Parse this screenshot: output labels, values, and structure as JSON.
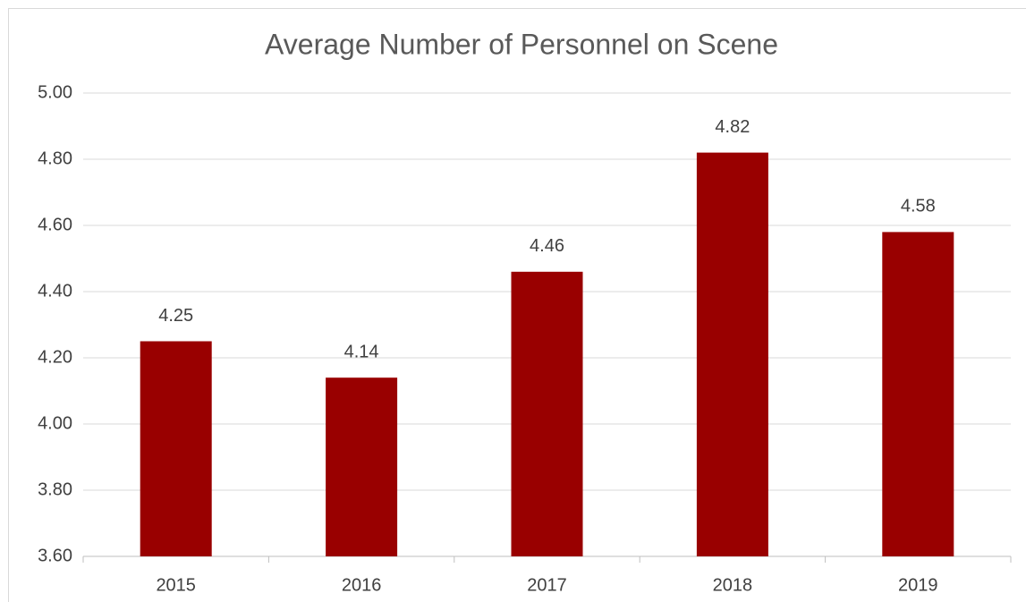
{
  "chart_data": {
    "type": "bar",
    "title": "Average Number of Personnel on Scene",
    "categories": [
      "2015",
      "2016",
      "2017",
      "2018",
      "2019"
    ],
    "values": [
      4.25,
      4.14,
      4.46,
      4.82,
      4.58
    ],
    "color": "#990000",
    "ylim": [
      3.6,
      5.0
    ],
    "yticks": [
      {
        "value": 3.6,
        "label": "3.60"
      },
      {
        "value": 3.8,
        "label": "3.80"
      },
      {
        "value": 4.0,
        "label": "4.00"
      },
      {
        "value": 4.2,
        "label": "4.20"
      },
      {
        "value": 4.4,
        "label": "4.40"
      },
      {
        "value": 4.6,
        "label": "4.60"
      },
      {
        "value": 4.8,
        "label": "4.80"
      },
      {
        "value": 5.0,
        "label": "5.00"
      }
    ],
    "grid": true
  }
}
